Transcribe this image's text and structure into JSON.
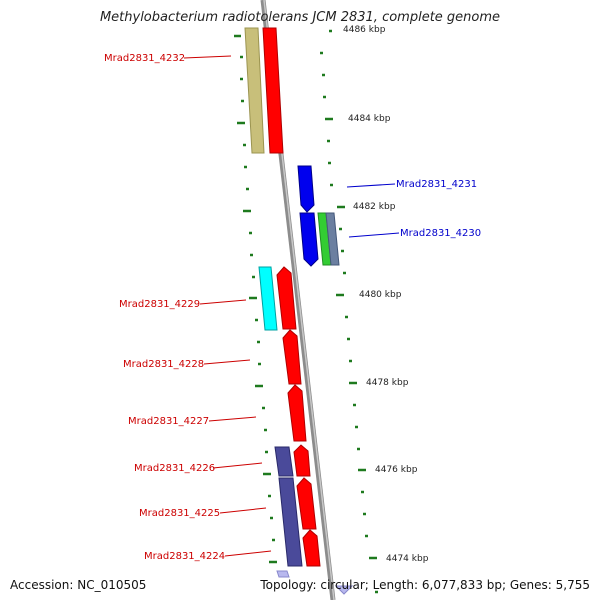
{
  "title": "Methylobacterium radiotolerans JCM 2831, complete genome",
  "footer": {
    "accession": "Accession: NC_010505",
    "summary": "Topology: circular; Length: 6,077,833 bp; Genes: 5,755"
  },
  "colors": {
    "backbone": "#8c8c8c",
    "tick": "#1e7a1e",
    "forward_label": "#cc0000",
    "reverse_label": "#0000cc",
    "red_gene": "#ff0000",
    "blue_gene": "#0000ee",
    "olive": "#c8bf7a",
    "cyan": "#00ffff",
    "navy": "#4a4a9a",
    "green": "#33cc33",
    "slate": "#6b7fa0",
    "lavender": "#b8b8ee"
  },
  "kbp_ticks": [
    "4486 kbp",
    "4484 kbp",
    "4482 kbp",
    "4480 kbp",
    "4478 kbp",
    "4476 kbp",
    "4474 kbp"
  ],
  "gene_labels": [
    {
      "text": "Mrad2831_4232",
      "strand": "forward"
    },
    {
      "text": "Mrad2831_4231",
      "strand": "reverse"
    },
    {
      "text": "Mrad2831_4230",
      "strand": "reverse"
    },
    {
      "text": "Mrad2831_4229",
      "strand": "forward"
    },
    {
      "text": "Mrad2831_4228",
      "strand": "forward"
    },
    {
      "text": "Mrad2831_4227",
      "strand": "forward"
    },
    {
      "text": "Mrad2831_4226",
      "strand": "forward"
    },
    {
      "text": "Mrad2831_4225",
      "strand": "forward"
    },
    {
      "text": "Mrad2831_4224",
      "strand": "forward"
    }
  ]
}
